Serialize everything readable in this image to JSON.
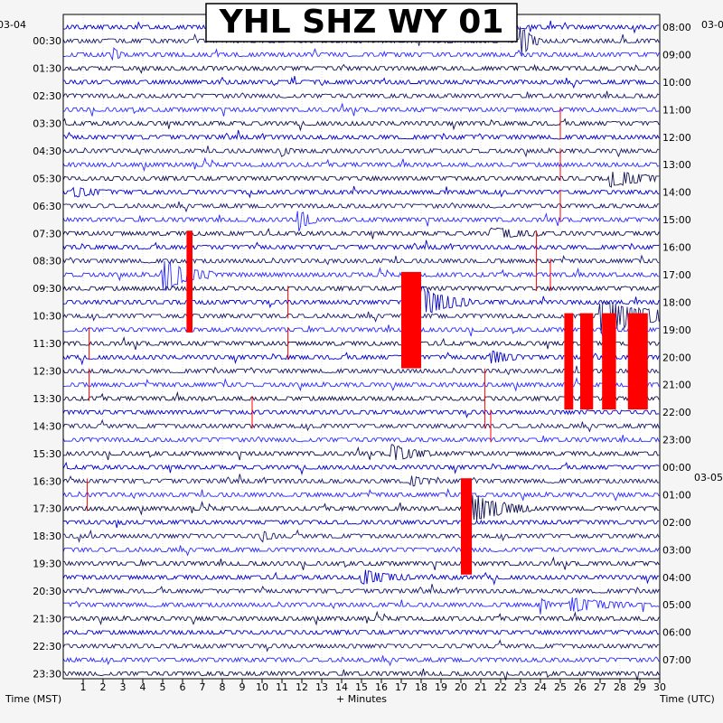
{
  "chart_data": {
    "type": "helicorder",
    "title": "YHL SHZ WY 01",
    "xlabel": "+ Minutes",
    "left_axis_title": "Time (MST)",
    "right_axis_title": "Time (UTC)",
    "date_left": "03-04",
    "date_right_top": "03-0",
    "date_right_mid": "03-05",
    "x_ticks": [
      1,
      2,
      3,
      4,
      5,
      6,
      7,
      8,
      9,
      10,
      11,
      12,
      13,
      14,
      15,
      16,
      17,
      18,
      19,
      20,
      21,
      22,
      23,
      24,
      25,
      26,
      27,
      28,
      29,
      30
    ],
    "xlim": [
      0,
      30
    ],
    "lines_per_hour": 2,
    "line_minutes": 30,
    "trace_colors": [
      "#0000cc",
      "#1a1a6e",
      "#2b2bff",
      "#101050"
    ],
    "clip_color": "#ff0000",
    "left_labels": [
      "00:30",
      "01:30",
      "02:30",
      "03:30",
      "04:30",
      "05:30",
      "06:30",
      "07:30",
      "08:30",
      "09:30",
      "10:30",
      "11:30",
      "12:30",
      "13:30",
      "14:30",
      "15:30",
      "16:30",
      "17:30",
      "18:30",
      "19:30",
      "20:30",
      "21:30",
      "22:30",
      "23:30"
    ],
    "right_labels": [
      "08:00",
      "09:00",
      "10:00",
      "11:00",
      "12:00",
      "13:00",
      "14:00",
      "15:00",
      "16:00",
      "17:00",
      "18:00",
      "19:00",
      "20:00",
      "21:00",
      "22:00",
      "23:00",
      "00:00",
      "01:00",
      "02:00",
      "03:00",
      "04:00",
      "05:00",
      "06:00",
      "07:00"
    ],
    "events": [
      {
        "line": 1,
        "minute": 23.0,
        "amp": 1.2,
        "dur": 1.0
      },
      {
        "line": 2,
        "minute": 2.5,
        "amp": 0.5,
        "dur": 0.5
      },
      {
        "line": 9,
        "minute": 11.0,
        "amp": 0.4,
        "dur": 0.5
      },
      {
        "line": 11,
        "minute": 27.5,
        "amp": 0.7,
        "dur": 2.5
      },
      {
        "line": 12,
        "minute": 0.5,
        "amp": 0.3,
        "dur": 2.0
      },
      {
        "line": 14,
        "minute": 11.8,
        "amp": 0.9,
        "dur": 1.0
      },
      {
        "line": 15,
        "minute": 21.5,
        "amp": 0.4,
        "dur": 2.5
      },
      {
        "line": 18,
        "minute": 5.0,
        "amp": 1.2,
        "dur": 2.5
      },
      {
        "line": 20,
        "minute": 18.0,
        "amp": 1.2,
        "dur": 2.5
      },
      {
        "line": 21,
        "minute": 27.0,
        "amp": 1.4,
        "dur": 4.5
      },
      {
        "line": 24,
        "minute": 21.5,
        "amp": 0.5,
        "dur": 1.5
      },
      {
        "line": 31,
        "minute": 16.5,
        "amp": 0.6,
        "dur": 2.0
      },
      {
        "line": 33,
        "minute": 17.5,
        "amp": 0.4,
        "dur": 1.0
      },
      {
        "line": 35,
        "minute": 20.5,
        "amp": 1.1,
        "dur": 3.0
      },
      {
        "line": 37,
        "minute": 10.0,
        "amp": 0.4,
        "dur": 0.8
      },
      {
        "line": 40,
        "minute": 15.0,
        "amp": 0.5,
        "dur": 2.5
      },
      {
        "line": 42,
        "minute": 25.5,
        "amp": 0.5,
        "dur": 3.0
      },
      {
        "line": 42,
        "minute": 24.0,
        "amp": 0.6,
        "dur": 0.6
      }
    ],
    "clipped_blocks": [
      {
        "minute": 6.2,
        "width": 0.3,
        "from_line": 14.8,
        "to_line": 22.2
      },
      {
        "minute": 17.0,
        "width": 1.0,
        "from_line": 17.8,
        "to_line": 24.8
      },
      {
        "minute": 20.0,
        "width": 0.55,
        "from_line": 32.8,
        "to_line": 39.8
      },
      {
        "minute": 25.2,
        "width": 0.45,
        "from_line": 20.8,
        "to_line": 27.8
      },
      {
        "minute": 26.0,
        "width": 0.65,
        "from_line": 20.8,
        "to_line": 27.8
      },
      {
        "minute": 27.1,
        "width": 0.7,
        "from_line": 20.8,
        "to_line": 27.8
      },
      {
        "minute": 28.4,
        "width": 1.0,
        "from_line": 20.8,
        "to_line": 27.8
      }
    ],
    "spikes": [
      {
        "line": 23,
        "minute": 1.3
      },
      {
        "line": 26,
        "minute": 1.3
      },
      {
        "line": 34,
        "minute": 1.2
      },
      {
        "line": 7,
        "minute": 25.0
      },
      {
        "line": 10,
        "minute": 25.0
      },
      {
        "line": 13,
        "minute": 25.0
      },
      {
        "line": 16,
        "minute": 23.8
      },
      {
        "line": 18,
        "minute": 23.8
      },
      {
        "line": 20,
        "minute": 11.3
      },
      {
        "line": 23,
        "minute": 11.3
      },
      {
        "line": 26,
        "minute": 21.2
      },
      {
        "line": 28,
        "minute": 21.2
      },
      {
        "line": 29,
        "minute": 21.5
      },
      {
        "line": 18,
        "minute": 24.5
      },
      {
        "line": 28,
        "minute": 9.5
      }
    ]
  }
}
